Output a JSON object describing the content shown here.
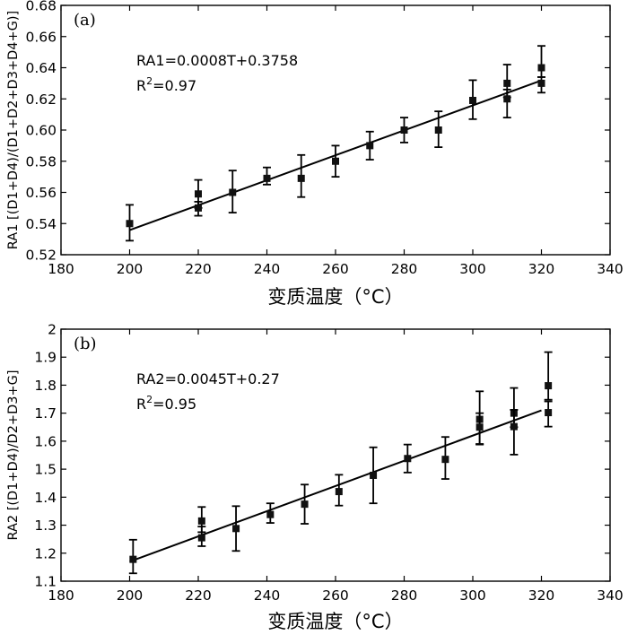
{
  "chart_data": [
    {
      "type": "scatter",
      "panel_label": "(a)",
      "xlabel": "变质温度（°C）",
      "ylabel": "RA1 [(D1+D4)/(D1+D2+D3+D4+G)]",
      "xlim": [
        180,
        340
      ],
      "ylim": [
        0.52,
        0.68
      ],
      "xticks": [
        180,
        200,
        220,
        240,
        260,
        280,
        300,
        320,
        340
      ],
      "yticks": [
        0.52,
        0.54,
        0.56,
        0.58,
        0.6,
        0.62,
        0.64,
        0.66,
        0.68
      ],
      "ytick_labels": [
        "0.52",
        "0.54",
        "0.56",
        "0.58",
        "0.60",
        "0.62",
        "0.64",
        "0.66",
        "0.68"
      ],
      "grid": false,
      "equation": "RA1=0.0008T+0.3758",
      "r2_label": "R",
      "r2_sup": "2",
      "r2_value": "=0.97",
      "fit": {
        "slope": 0.0008,
        "intercept": 0.3758,
        "x_range": [
          200,
          320
        ]
      },
      "points": [
        {
          "x": 200,
          "y": 0.54,
          "err_lo": 0.011,
          "err_hi": 0.012
        },
        {
          "x": 220,
          "y": 0.559,
          "err_lo": 0.009,
          "err_hi": 0.009
        },
        {
          "x": 220,
          "y": 0.55,
          "err_lo": 0.005,
          "err_hi": 0.004
        },
        {
          "x": 230,
          "y": 0.56,
          "err_lo": 0.013,
          "err_hi": 0.014
        },
        {
          "x": 240,
          "y": 0.569,
          "err_lo": 0.004,
          "err_hi": 0.007
        },
        {
          "x": 250,
          "y": 0.569,
          "err_lo": 0.012,
          "err_hi": 0.015
        },
        {
          "x": 260,
          "y": 0.58,
          "err_lo": 0.01,
          "err_hi": 0.01
        },
        {
          "x": 270,
          "y": 0.59,
          "err_lo": 0.009,
          "err_hi": 0.009
        },
        {
          "x": 280,
          "y": 0.6,
          "err_lo": 0.008,
          "err_hi": 0.008
        },
        {
          "x": 290,
          "y": 0.6,
          "err_lo": 0.011,
          "err_hi": 0.012
        },
        {
          "x": 300,
          "y": 0.619,
          "err_lo": 0.012,
          "err_hi": 0.013
        },
        {
          "x": 310,
          "y": 0.63,
          "err_lo": 0.009,
          "err_hi": 0.012
        },
        {
          "x": 310,
          "y": 0.62,
          "err_lo": 0.012,
          "err_hi": 0.006
        },
        {
          "x": 320,
          "y": 0.64,
          "err_lo": 0.006,
          "err_hi": 0.014
        },
        {
          "x": 320,
          "y": 0.63,
          "err_lo": 0.006,
          "err_hi": 0.004
        }
      ]
    },
    {
      "type": "scatter",
      "panel_label": "(b)",
      "xlabel": "变质温度（°C）",
      "ylabel": "RA2 [(D1+D4)/D2+D3+G]",
      "xlim": [
        180,
        340
      ],
      "ylim": [
        1.1,
        2.0
      ],
      "xticks": [
        180,
        200,
        220,
        240,
        260,
        280,
        300,
        320,
        340
      ],
      "yticks": [
        1.1,
        1.2,
        1.3,
        1.4,
        1.5,
        1.6,
        1.7,
        1.8,
        1.9,
        2.0
      ],
      "ytick_labels": [
        "1.1",
        "1.2",
        "1.3",
        "1.4",
        "1.5",
        "1.6",
        "1.7",
        "1.8",
        "1.9",
        "2"
      ],
      "grid": false,
      "equation": "RA2=0.0045T+0.27",
      "r2_label": "R",
      "r2_sup": "2",
      "r2_value": "=0.95",
      "fit": {
        "slope": 0.0045,
        "intercept": 0.27,
        "x_range": [
          200,
          320
        ]
      },
      "points": [
        {
          "x": 201,
          "y": 1.178,
          "err_lo": 0.05,
          "err_hi": 0.07
        },
        {
          "x": 221,
          "y": 1.315,
          "err_lo": 0.04,
          "err_hi": 0.05
        },
        {
          "x": 221,
          "y": 1.255,
          "err_lo": 0.03,
          "err_hi": 0.04
        },
        {
          "x": 231,
          "y": 1.288,
          "err_lo": 0.08,
          "err_hi": 0.08
        },
        {
          "x": 241,
          "y": 1.338,
          "err_lo": 0.03,
          "err_hi": 0.04
        },
        {
          "x": 251,
          "y": 1.375,
          "err_lo": 0.07,
          "err_hi": 0.07
        },
        {
          "x": 261,
          "y": 1.42,
          "err_lo": 0.05,
          "err_hi": 0.06
        },
        {
          "x": 271,
          "y": 1.478,
          "err_lo": 0.1,
          "err_hi": 0.1
        },
        {
          "x": 281,
          "y": 1.538,
          "err_lo": 0.05,
          "err_hi": 0.05
        },
        {
          "x": 292,
          "y": 1.535,
          "err_lo": 0.07,
          "err_hi": 0.08
        },
        {
          "x": 302,
          "y": 1.678,
          "err_lo": 0.09,
          "err_hi": 0.1
        },
        {
          "x": 302,
          "y": 1.65,
          "err_lo": 0.06,
          "err_hi": 0.05
        },
        {
          "x": 312,
          "y": 1.7,
          "err_lo": 0.05,
          "err_hi": 0.09
        },
        {
          "x": 312,
          "y": 1.652,
          "err_lo": 0.1,
          "err_hi": 0.06
        },
        {
          "x": 322,
          "y": 1.798,
          "err_lo": 0.05,
          "err_hi": 0.12
        },
        {
          "x": 322,
          "y": 1.702,
          "err_lo": 0.05,
          "err_hi": 0.04
        }
      ]
    }
  ]
}
